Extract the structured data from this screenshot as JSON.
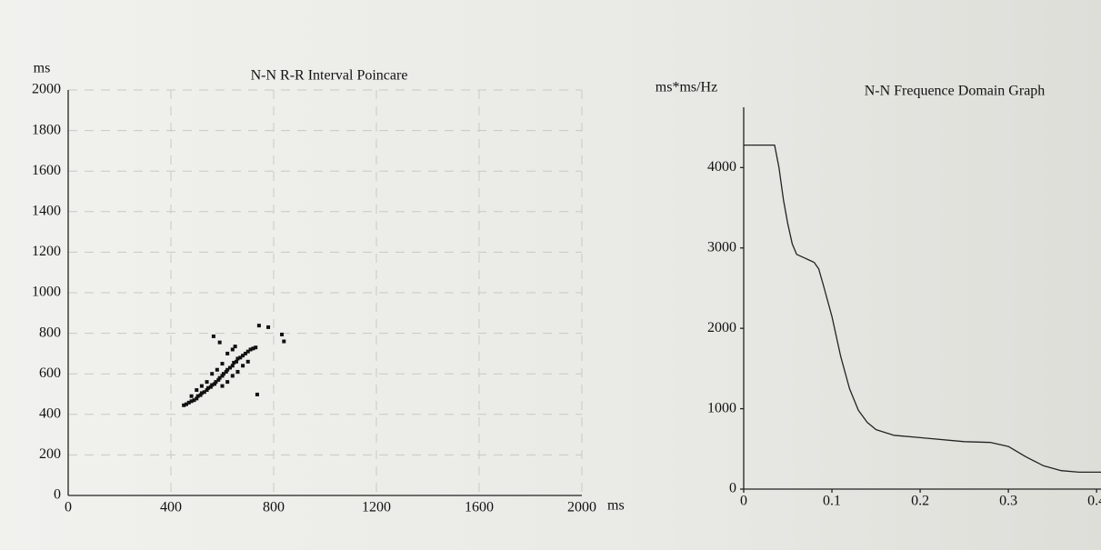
{
  "chart_data": [
    {
      "type": "scatter",
      "title": "N-N R-R Interval Poincare",
      "x_label": "ms",
      "y_label": "ms",
      "series": [
        {
          "color": "#111111",
          "x": [
            450,
            460,
            470,
            480,
            490,
            500,
            505,
            515,
            520,
            530,
            540,
            545,
            555,
            560,
            570,
            575,
            585,
            590,
            600,
            605,
            615,
            620,
            630,
            640,
            645,
            655,
            660,
            670,
            680,
            690,
            700,
            710,
            720,
            730,
            620,
            640,
            600,
            580,
            560,
            660,
            680,
            700,
            540,
            520,
            500,
            480,
            620,
            600,
            640,
            590,
            650,
            743,
            832,
            566,
            736,
            779,
            840
          ],
          "values": [
            445,
            450,
            458,
            465,
            470,
            478,
            490,
            495,
            505,
            510,
            520,
            530,
            535,
            545,
            550,
            560,
            570,
            580,
            590,
            600,
            610,
            620,
            630,
            640,
            655,
            660,
            675,
            680,
            690,
            700,
            710,
            720,
            725,
            730,
            700,
            720,
            650,
            620,
            600,
            610,
            640,
            660,
            560,
            540,
            520,
            490,
            560,
            540,
            590,
            755,
            735,
            838,
            794,
            785,
            498,
            830,
            760
          ]
        }
      ],
      "xlim": [
        0,
        2000
      ],
      "xticks": [
        0,
        400,
        800,
        1200,
        1600,
        2000
      ],
      "ylim": [
        0,
        2000
      ],
      "yticks": [
        0,
        200,
        400,
        600,
        800,
        1000,
        1200,
        1400,
        1600,
        1800,
        2000
      ],
      "grid": true
    },
    {
      "type": "line",
      "title": "N-N Frequence Domain Graph",
      "y_label": "ms*ms/Hz",
      "series": [
        {
          "color": "#222222",
          "x": [
            0,
            0.035,
            0.04,
            0.045,
            0.05,
            0.055,
            0.06,
            0.07,
            0.08,
            0.085,
            0.09,
            0.1,
            0.11,
            0.12,
            0.13,
            0.14,
            0.15,
            0.17,
            0.2,
            0.25,
            0.28,
            0.3,
            0.32,
            0.34,
            0.36,
            0.38,
            0.4,
            0.405
          ],
          "values": [
            4280,
            4280,
            4000,
            3600,
            3300,
            3050,
            2920,
            2870,
            2820,
            2740,
            2550,
            2150,
            1650,
            1250,
            980,
            830,
            740,
            670,
            640,
            590,
            580,
            530,
            400,
            290,
            230,
            210,
            210,
            210
          ]
        }
      ],
      "xlim": [
        0,
        0.405
      ],
      "xticks": [
        0,
        0.1,
        0.2,
        0.3,
        0.4
      ],
      "ylim": [
        0,
        4750
      ],
      "yticks": [
        0,
        1000,
        2000,
        3000,
        4000
      ],
      "grid": false
    }
  ]
}
